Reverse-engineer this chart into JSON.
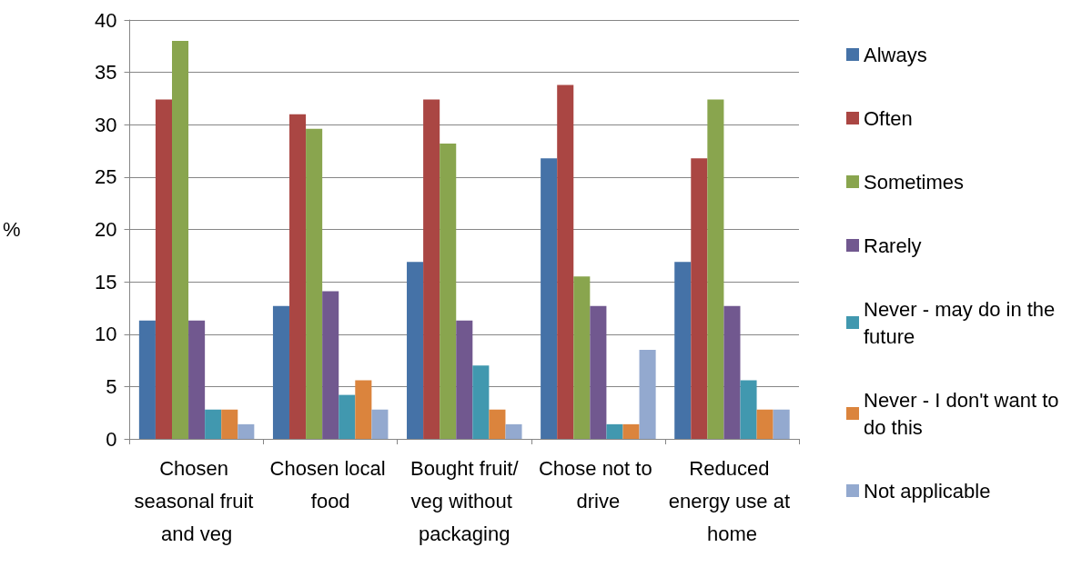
{
  "chart_data": {
    "type": "bar",
    "ylabel": "%",
    "categories": [
      "Chosen seasonal fruit and veg",
      "Chosen local food",
      "Bought fruit/veg without packaging",
      "Chose not to drive",
      "Reduced energy use at home"
    ],
    "series": [
      {
        "name": "Always",
        "color": "#4572a7",
        "values": [
          11.3,
          12.7,
          16.9,
          26.8,
          16.9
        ]
      },
      {
        "name": "Often",
        "color": "#aa4643",
        "values": [
          32.4,
          31,
          32.4,
          33.8,
          26.8
        ]
      },
      {
        "name": "Sometimes",
        "color": "#89a54e",
        "values": [
          38,
          29.6,
          28.2,
          15.5,
          32.4
        ]
      },
      {
        "name": "Rarely",
        "color": "#71588f",
        "values": [
          11.3,
          14.1,
          11.3,
          12.7,
          12.7
        ]
      },
      {
        "name": "Never - may do in the future",
        "color": "#4198af",
        "values": [
          2.8,
          4.2,
          7,
          1.4,
          5.6
        ]
      },
      {
        "name": "Never - I don't want to do this",
        "color": "#db843d",
        "values": [
          2.8,
          5.6,
          2.8,
          1.4,
          2.8
        ]
      },
      {
        "name": "Not applicable",
        "color": "#93a9cf",
        "values": [
          1.4,
          2.8,
          1.4,
          8.5,
          2.8
        ]
      }
    ],
    "ylim": [
      0,
      40
    ],
    "yticks": [
      0,
      5,
      10,
      15,
      20,
      25,
      30,
      35,
      40
    ],
    "grid": "y",
    "legend": "right"
  }
}
